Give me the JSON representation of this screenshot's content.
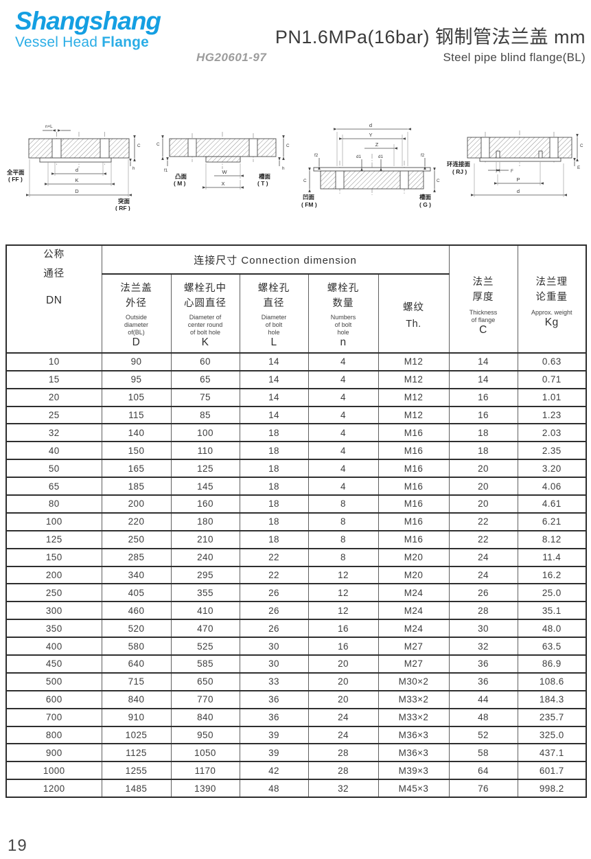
{
  "logo": {
    "brand": "Shangshang",
    "tagline_light": "Vessel Head ",
    "tagline_bold": "Flange"
  },
  "header": {
    "title": "PN1.6MPa(16bar) 钢制管法兰盖  mm",
    "standard": "HG20601-97",
    "subtitle_en": "Steel pipe blind flange(BL)"
  },
  "drawings": {
    "ff_rf": {
      "left_name": "全平面",
      "left_code": "( FF )",
      "right_name": "突面",
      "right_code": "( RF )",
      "top": "n×L",
      "dims": [
        "d",
        "K",
        "D"
      ],
      "side": [
        "C",
        "h"
      ]
    },
    "m_t": {
      "left_name": "凸面",
      "left_code": "( M )",
      "right_name": "槽面",
      "right_code": "( T )",
      "dims": [
        "W",
        "X"
      ],
      "side": [
        "C",
        "C"
      ],
      "small": [
        "f1",
        "h"
      ]
    },
    "fm_g": {
      "left_name": "凹面",
      "left_code": "( FM )",
      "right_name": "槽面",
      "right_code": "( G )",
      "dims": [
        "d",
        "Y",
        "Z"
      ],
      "small": [
        "f2",
        "d1",
        "d1",
        "f2"
      ],
      "side": [
        "C",
        "C"
      ]
    },
    "rj": {
      "left_name": "环连接面",
      "left_code": "( RJ )",
      "dims": [
        "F",
        "P",
        "d"
      ],
      "side": [
        "C",
        "E"
      ]
    }
  },
  "table": {
    "group_header": "连接尺寸  Connection dimension",
    "col_dn": {
      "zh": "公称\n通径",
      "sym": "DN"
    },
    "col_d": {
      "zh": "法兰盖\n外径",
      "en": "Outside\ndiameter\nof(BL)",
      "sym": "D"
    },
    "col_k": {
      "zh": "螺栓孔中\n心圆直径",
      "en": "Diameter of\ncenter round\nof bolt hole",
      "sym": "K"
    },
    "col_l": {
      "zh": "螺栓孔\n直径",
      "en": "Diameter\nof bolt\nhole",
      "sym": "L"
    },
    "col_n": {
      "zh": "螺栓孔\n数量",
      "en": "Numbers\nof bolt\nhole",
      "sym": "n"
    },
    "col_th": {
      "zh": "螺纹",
      "sym": "Th."
    },
    "col_c": {
      "zh": "法兰\n厚度",
      "en": "Thickness\nof flange",
      "sym": "C"
    },
    "col_kg": {
      "zh": "法兰理\n论重量",
      "en": "Approx. weight",
      "sym": "Kg"
    },
    "rows": [
      [
        "10",
        "90",
        "60",
        "14",
        "4",
        "M12",
        "14",
        "0.63"
      ],
      [
        "15",
        "95",
        "65",
        "14",
        "4",
        "M12",
        "14",
        "0.71"
      ],
      [
        "20",
        "105",
        "75",
        "14",
        "4",
        "M12",
        "16",
        "1.01"
      ],
      [
        "25",
        "115",
        "85",
        "14",
        "4",
        "M12",
        "16",
        "1.23"
      ],
      [
        "32",
        "140",
        "100",
        "18",
        "4",
        "M16",
        "18",
        "2.03"
      ],
      [
        "40",
        "150",
        "110",
        "18",
        "4",
        "M16",
        "18",
        "2.35"
      ],
      [
        "50",
        "165",
        "125",
        "18",
        "4",
        "M16",
        "20",
        "3.20"
      ],
      [
        "65",
        "185",
        "145",
        "18",
        "4",
        "M16",
        "20",
        "4.06"
      ],
      [
        "80",
        "200",
        "160",
        "18",
        "8",
        "M16",
        "20",
        "4.61"
      ],
      [
        "100",
        "220",
        "180",
        "18",
        "8",
        "M16",
        "22",
        "6.21"
      ],
      [
        "125",
        "250",
        "210",
        "18",
        "8",
        "M16",
        "22",
        "8.12"
      ],
      [
        "150",
        "285",
        "240",
        "22",
        "8",
        "M20",
        "24",
        "11.4"
      ],
      [
        "200",
        "340",
        "295",
        "22",
        "12",
        "M20",
        "24",
        "16.2"
      ],
      [
        "250",
        "405",
        "355",
        "26",
        "12",
        "M24",
        "26",
        "25.0"
      ],
      [
        "300",
        "460",
        "410",
        "26",
        "12",
        "M24",
        "28",
        "35.1"
      ],
      [
        "350",
        "520",
        "470",
        "26",
        "16",
        "M24",
        "30",
        "48.0"
      ],
      [
        "400",
        "580",
        "525",
        "30",
        "16",
        "M27",
        "32",
        "63.5"
      ],
      [
        "450",
        "640",
        "585",
        "30",
        "20",
        "M27",
        "36",
        "86.9"
      ],
      [
        "500",
        "715",
        "650",
        "33",
        "20",
        "M30×2",
        "36",
        "108.6"
      ],
      [
        "600",
        "840",
        "770",
        "36",
        "20",
        "M33×2",
        "44",
        "184.3"
      ],
      [
        "700",
        "910",
        "840",
        "36",
        "24",
        "M33×2",
        "48",
        "235.7"
      ],
      [
        "800",
        "1025",
        "950",
        "39",
        "24",
        "M36×3",
        "52",
        "325.0"
      ],
      [
        "900",
        "1125",
        "1050",
        "39",
        "28",
        "M36×3",
        "58",
        "437.1"
      ],
      [
        "1000",
        "1255",
        "1170",
        "42",
        "28",
        "M39×3",
        "64",
        "601.7"
      ],
      [
        "1200",
        "1485",
        "1390",
        "48",
        "32",
        "M45×3",
        "76",
        "998.2"
      ]
    ]
  },
  "page_number": "19"
}
